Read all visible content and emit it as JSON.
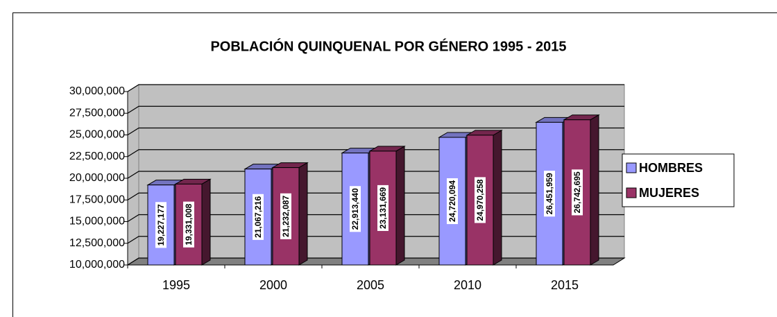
{
  "chart_data": {
    "type": "bar3d",
    "title": "POBLACIÓN QUINQUENAL POR GÉNERO 1995 - 2015",
    "categories": [
      "1995",
      "2000",
      "2005",
      "2010",
      "2015"
    ],
    "series": [
      {
        "name": "HOMBRES",
        "color": "#9999ff",
        "values": [
          19227177,
          21067216,
          22913440,
          24720094,
          26451959
        ],
        "value_labels": [
          "19,227,177",
          "21,067,216",
          "22,913,440",
          "24,720,094",
          "26,451,959"
        ]
      },
      {
        "name": "MUJERES",
        "color": "#993366",
        "values": [
          19331008,
          21232087,
          23131669,
          24970258,
          26742695
        ],
        "value_labels": [
          "19,331,008",
          "21,232,087",
          "23,131,669",
          "24,970,258",
          "26,742,695"
        ]
      }
    ],
    "ylim": [
      10000000,
      30000000
    ],
    "yticks": [
      {
        "value": 10000000,
        "label": "10,000,000"
      },
      {
        "value": 12500000,
        "label": "12,500,000"
      },
      {
        "value": 15000000,
        "label": "15,000,000"
      },
      {
        "value": 17500000,
        "label": "17,500,000"
      },
      {
        "value": 20000000,
        "label": "20,000,000"
      },
      {
        "value": 22500000,
        "label": "22,500,000"
      },
      {
        "value": 25000000,
        "label": "25,000,000"
      },
      {
        "value": 27500000,
        "label": "27,500,000"
      },
      {
        "value": 30000000,
        "label": "30,000,000"
      }
    ],
    "grid": true,
    "legend": "right"
  }
}
